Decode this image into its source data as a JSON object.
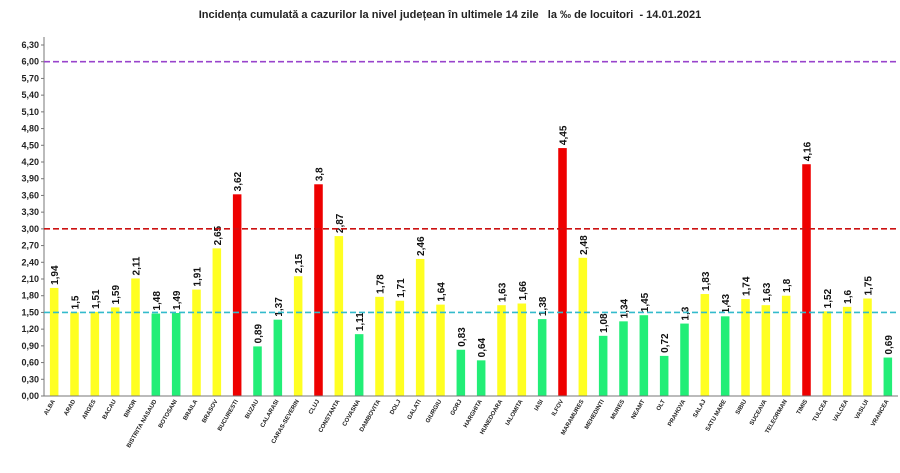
{
  "chart_data": {
    "type": "bar",
    "title": "Incidența cumulată a cazurilor la nivel județean în ultimele 14 zile   la ‰ de locuitori  - 14.01.2021",
    "ylim": [
      0,
      6.3
    ],
    "yticks": [
      "0,00",
      "0,30",
      "0,60",
      "0,90",
      "1,20",
      "1,50",
      "1,80",
      "2,10",
      "2,40",
      "2,70",
      "3,00",
      "3,30",
      "3,60",
      "3,90",
      "4,20",
      "4,50",
      "4,80",
      "5,10",
      "5,40",
      "5,70",
      "6,00",
      "6,30"
    ],
    "grid": false,
    "categories": [
      "ALBA",
      "ARAD",
      "ARGES",
      "BACAU",
      "BIHOR",
      "BISTRITA NASAUD",
      "BOTOSANI",
      "BRAILA",
      "BRASOV",
      "BUCURESTI",
      "BUZAU",
      "CALARASI",
      "CARAS-SEVERIN",
      "CLUJ",
      "CONSTANTA",
      "COVASNA",
      "DAMBOVITA",
      "DOLJ",
      "GALATI",
      "GIURGIU",
      "GORJ",
      "HARGHITA",
      "HUNEDOARA",
      "IALOMITA",
      "IASI",
      "ILFOV",
      "MARAMURES",
      "MEHEDINTI",
      "MURES",
      "NEAMT",
      "OLT",
      "PRAHOVA",
      "SALAJ",
      "SATU MARE",
      "SIBIU",
      "SUCEAVA",
      "TELEORMAN",
      "TIMIS",
      "TULCEA",
      "VALCEA",
      "VASLUI",
      "VRANCEA"
    ],
    "values": [
      1.94,
      1.5,
      1.51,
      1.59,
      2.11,
      1.48,
      1.49,
      1.91,
      2.65,
      3.62,
      0.89,
      1.37,
      2.15,
      3.8,
      2.87,
      1.11,
      1.78,
      1.71,
      2.46,
      1.64,
      0.83,
      0.64,
      1.63,
      1.66,
      1.38,
      4.45,
      2.48,
      1.08,
      1.34,
      1.45,
      0.72,
      1.3,
      1.83,
      1.43,
      1.74,
      1.63,
      1.8,
      4.16,
      1.52,
      1.6,
      1.75,
      0.69
    ],
    "value_labels": [
      "1,94",
      "1,5",
      "1,51",
      "1,59",
      "2,11",
      "1,48",
      "1,49",
      "1,91",
      "2,65",
      "3,62",
      "0,89",
      "1,37",
      "2,15",
      "3,8",
      "2,87",
      "1,11",
      "1,78",
      "1,71",
      "2,46",
      "1,64",
      "0,83",
      "0,64",
      "1,63",
      "1,66",
      "1,38",
      "4,45",
      "2,48",
      "1,08",
      "1,34",
      "1,45",
      "0,72",
      "1,3",
      "1,83",
      "1,43",
      "1,74",
      "1,63",
      "1,8",
      "4,16",
      "1,52",
      "1,6",
      "1,75",
      "0,69"
    ],
    "bar_colors": {
      "green": "#22ee77",
      "yellow": "#ffff22",
      "red": "#ee0000"
    },
    "thresholds": [
      {
        "value": 6.0,
        "color": "#9944cc"
      },
      {
        "value": 3.0,
        "color": "#cc1111"
      },
      {
        "value": 1.5,
        "color": "#33bbcc"
      }
    ]
  }
}
